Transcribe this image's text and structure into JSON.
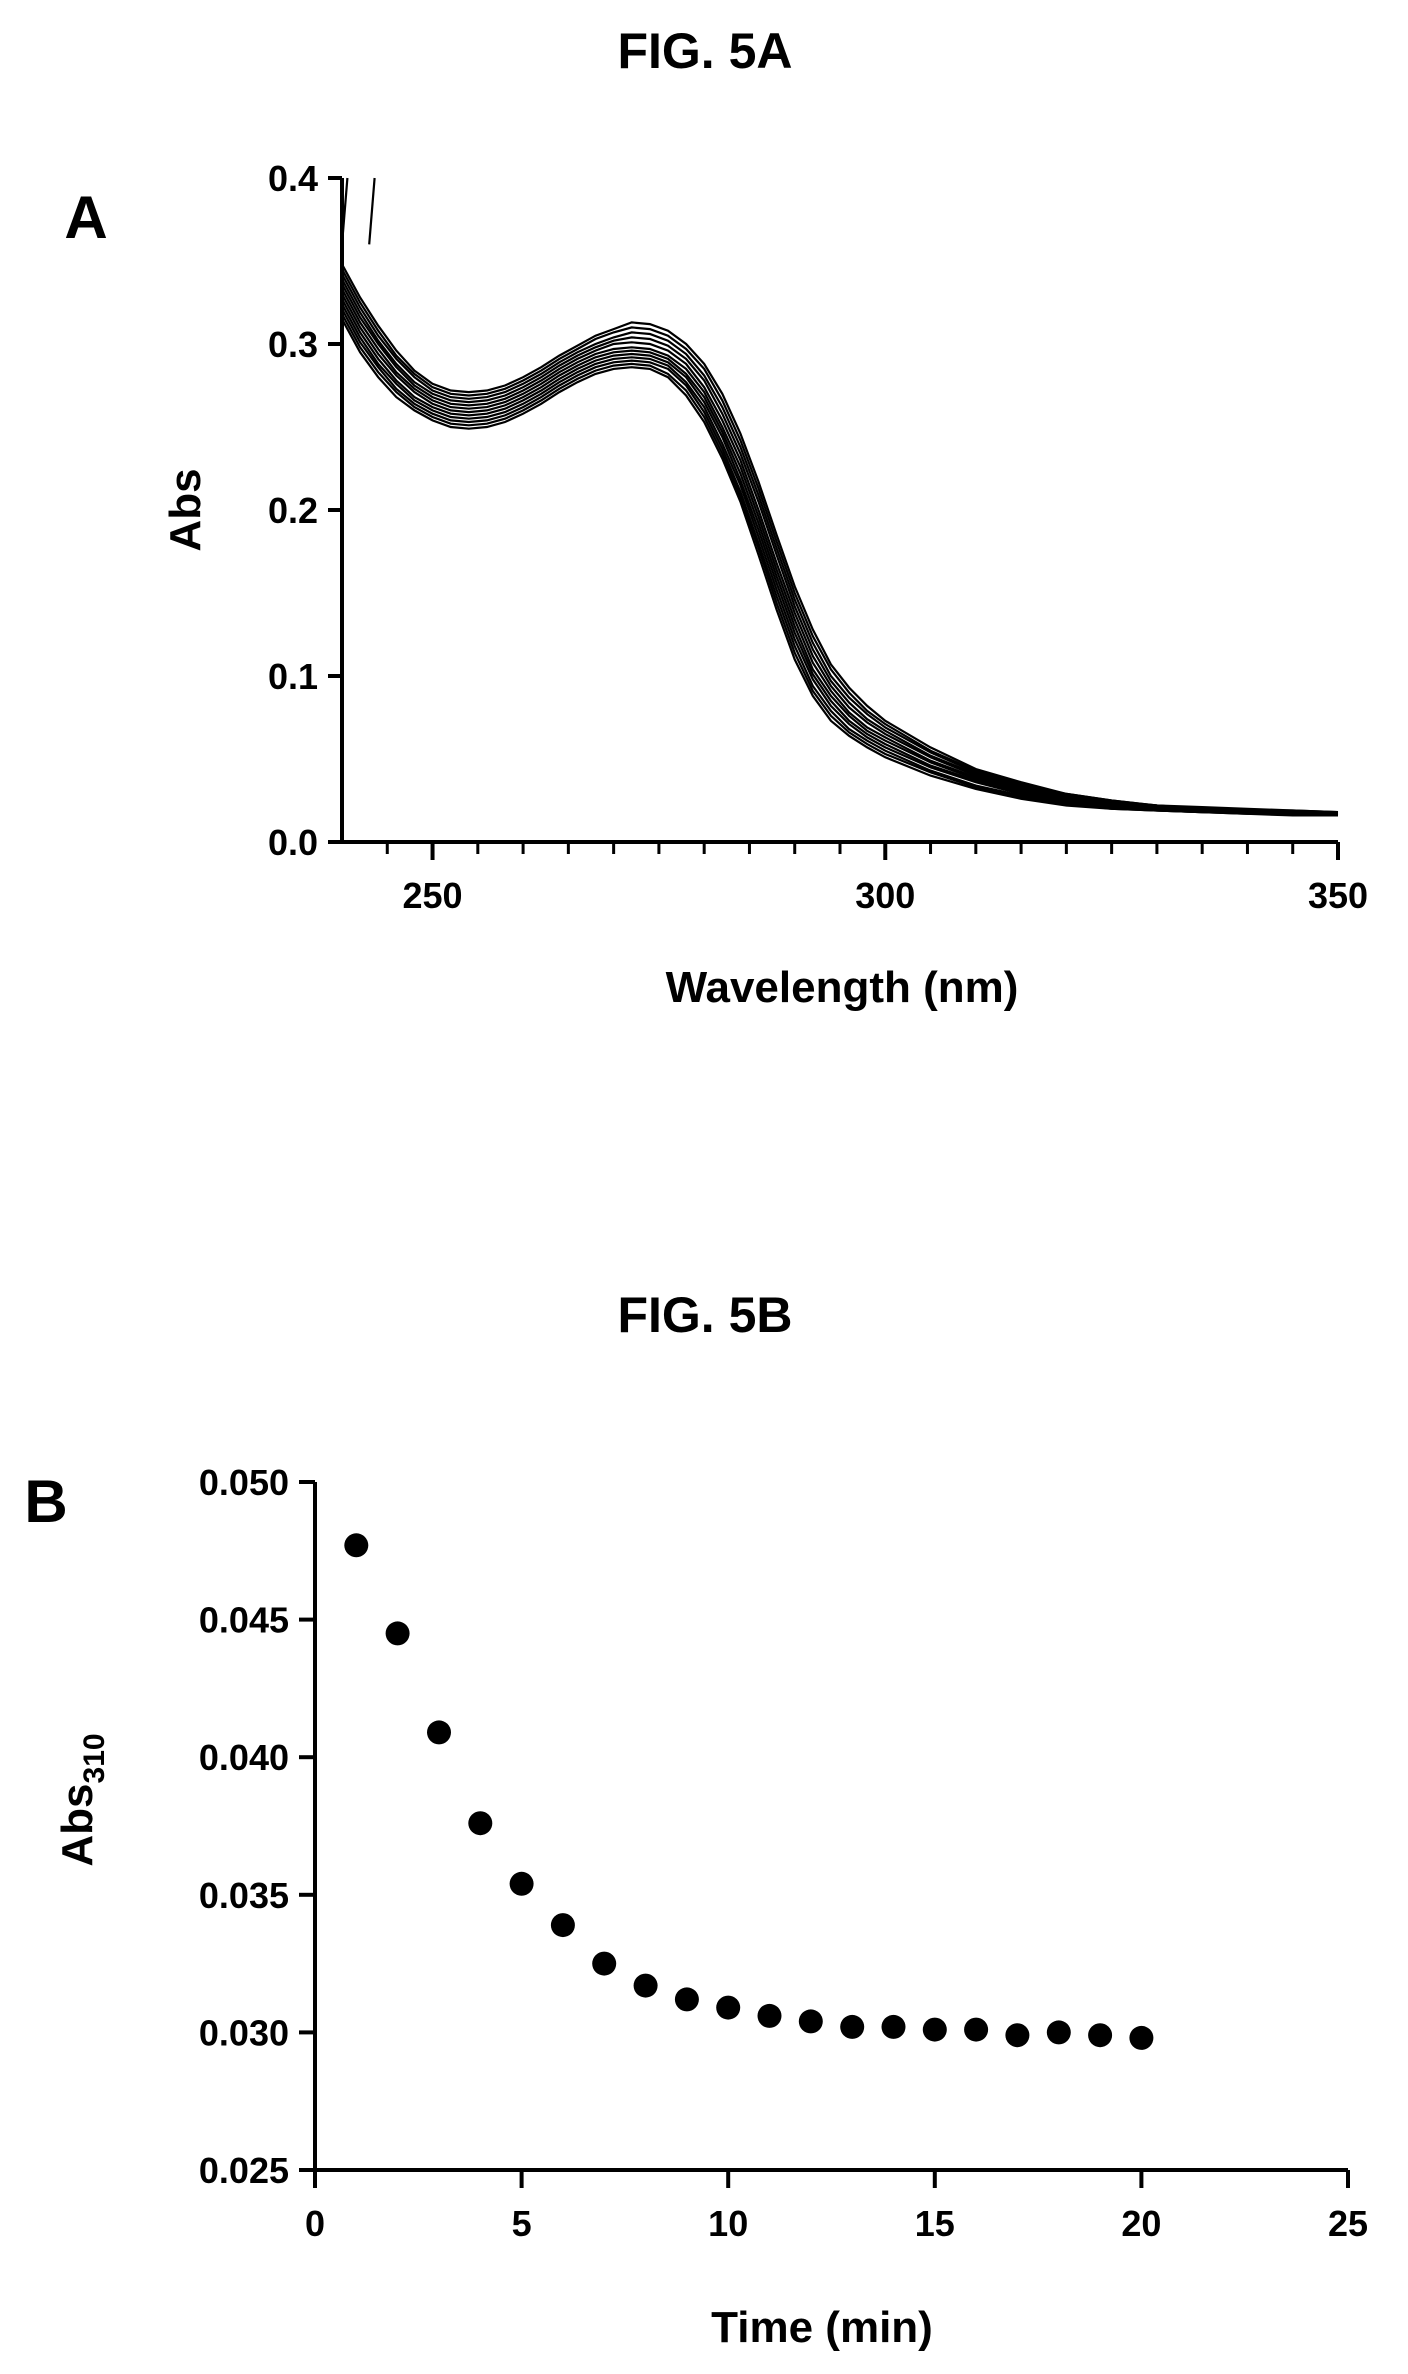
{
  "figure_a": {
    "title": "FIG. 5A",
    "panel_label": "A"
  },
  "figure_b": {
    "title": "FIG. 5B",
    "panel_label": "B"
  },
  "chart_data": [
    {
      "type": "line",
      "panel": "A",
      "xlabel": "Wavelength (nm)",
      "ylabel": "Abs",
      "xlim": [
        240,
        350
      ],
      "ylim": [
        0.0,
        0.4
      ],
      "xticks": [
        250,
        300,
        350
      ],
      "xtick_labels": [
        "250",
        "300",
        "350"
      ],
      "yticks": [
        0.0,
        0.1,
        0.2,
        0.3,
        0.4
      ],
      "ytick_labels": [
        "0.0",
        "0.1",
        "0.2",
        "0.3",
        "0.4"
      ],
      "grid": false,
      "legend": "none",
      "x": [
        240,
        242,
        244,
        246,
        248,
        250,
        252,
        254,
        256,
        258,
        260,
        262,
        264,
        266,
        268,
        270,
        272,
        274,
        276,
        278,
        280,
        282,
        284,
        286,
        288,
        290,
        292,
        294,
        296,
        298,
        300,
        305,
        310,
        315,
        320,
        325,
        330,
        335,
        340,
        345,
        350
      ],
      "series": [
        {
          "values": [
            0.315,
            0.295,
            0.28,
            0.268,
            0.26,
            0.254,
            0.25,
            0.249,
            0.25,
            0.253,
            0.258,
            0.264,
            0.271,
            0.277,
            0.282,
            0.285,
            0.286,
            0.285,
            0.28,
            0.269,
            0.253,
            0.231,
            0.205,
            0.173,
            0.14,
            0.11,
            0.088,
            0.073,
            0.064,
            0.057,
            0.051,
            0.04,
            0.032,
            0.026,
            0.022,
            0.02,
            0.019,
            0.018,
            0.017,
            0.016,
            0.016
          ]
        },
        {
          "values": [
            0.318,
            0.298,
            0.283,
            0.271,
            0.262,
            0.256,
            0.252,
            0.251,
            0.252,
            0.255,
            0.26,
            0.266,
            0.273,
            0.279,
            0.284,
            0.287,
            0.288,
            0.287,
            0.282,
            0.272,
            0.256,
            0.234,
            0.208,
            0.177,
            0.144,
            0.114,
            0.091,
            0.076,
            0.066,
            0.059,
            0.053,
            0.042,
            0.033,
            0.027,
            0.023,
            0.02,
            0.019,
            0.018,
            0.017,
            0.017,
            0.016
          ]
        },
        {
          "values": [
            0.321,
            0.301,
            0.286,
            0.273,
            0.264,
            0.258,
            0.254,
            0.253,
            0.254,
            0.257,
            0.262,
            0.268,
            0.275,
            0.281,
            0.286,
            0.289,
            0.29,
            0.289,
            0.285,
            0.275,
            0.259,
            0.237,
            0.211,
            0.18,
            0.148,
            0.118,
            0.094,
            0.079,
            0.068,
            0.061,
            0.055,
            0.043,
            0.034,
            0.028,
            0.023,
            0.021,
            0.019,
            0.018,
            0.018,
            0.017,
            0.016
          ]
        },
        {
          "values": [
            0.324,
            0.304,
            0.288,
            0.276,
            0.266,
            0.26,
            0.256,
            0.255,
            0.256,
            0.259,
            0.264,
            0.27,
            0.277,
            0.283,
            0.288,
            0.291,
            0.292,
            0.291,
            0.287,
            0.277,
            0.262,
            0.24,
            0.215,
            0.184,
            0.152,
            0.122,
            0.098,
            0.082,
            0.071,
            0.063,
            0.057,
            0.045,
            0.036,
            0.029,
            0.024,
            0.021,
            0.02,
            0.019,
            0.018,
            0.017,
            0.017
          ]
        },
        {
          "values": [
            0.327,
            0.307,
            0.291,
            0.278,
            0.268,
            0.262,
            0.258,
            0.257,
            0.258,
            0.261,
            0.266,
            0.272,
            0.279,
            0.285,
            0.29,
            0.293,
            0.294,
            0.293,
            0.289,
            0.28,
            0.265,
            0.244,
            0.218,
            0.188,
            0.156,
            0.126,
            0.101,
            0.085,
            0.073,
            0.065,
            0.059,
            0.046,
            0.037,
            0.03,
            0.025,
            0.022,
            0.02,
            0.019,
            0.018,
            0.017,
            0.017
          ]
        },
        {
          "values": [
            0.33,
            0.31,
            0.294,
            0.281,
            0.271,
            0.264,
            0.26,
            0.259,
            0.26,
            0.263,
            0.268,
            0.274,
            0.281,
            0.287,
            0.292,
            0.295,
            0.296,
            0.295,
            0.291,
            0.282,
            0.268,
            0.247,
            0.222,
            0.192,
            0.16,
            0.13,
            0.104,
            0.088,
            0.076,
            0.067,
            0.061,
            0.048,
            0.038,
            0.031,
            0.025,
            0.022,
            0.02,
            0.019,
            0.018,
            0.018,
            0.017
          ]
        },
        {
          "values": [
            0.333,
            0.313,
            0.297,
            0.283,
            0.273,
            0.266,
            0.262,
            0.261,
            0.262,
            0.265,
            0.27,
            0.276,
            0.283,
            0.289,
            0.294,
            0.297,
            0.298,
            0.297,
            0.293,
            0.285,
            0.271,
            0.25,
            0.226,
            0.196,
            0.164,
            0.134,
            0.108,
            0.091,
            0.078,
            0.069,
            0.063,
            0.049,
            0.039,
            0.032,
            0.026,
            0.023,
            0.021,
            0.019,
            0.018,
            0.018,
            0.017
          ]
        },
        {
          "values": [
            0.336,
            0.316,
            0.3,
            0.286,
            0.275,
            0.268,
            0.264,
            0.263,
            0.264,
            0.267,
            0.272,
            0.278,
            0.285,
            0.291,
            0.296,
            0.3,
            0.301,
            0.3,
            0.296,
            0.288,
            0.274,
            0.254,
            0.23,
            0.2,
            0.168,
            0.138,
            0.112,
            0.094,
            0.081,
            0.072,
            0.065,
            0.051,
            0.04,
            0.033,
            0.027,
            0.023,
            0.021,
            0.02,
            0.019,
            0.018,
            0.017
          ]
        },
        {
          "values": [
            0.339,
            0.319,
            0.302,
            0.288,
            0.277,
            0.27,
            0.266,
            0.265,
            0.266,
            0.269,
            0.274,
            0.28,
            0.287,
            0.293,
            0.298,
            0.302,
            0.304,
            0.303,
            0.299,
            0.291,
            0.278,
            0.258,
            0.234,
            0.205,
            0.173,
            0.142,
            0.116,
            0.097,
            0.084,
            0.074,
            0.067,
            0.052,
            0.041,
            0.033,
            0.027,
            0.024,
            0.021,
            0.02,
            0.019,
            0.018,
            0.018
          ]
        },
        {
          "values": [
            0.342,
            0.322,
            0.305,
            0.291,
            0.28,
            0.272,
            0.268,
            0.267,
            0.268,
            0.271,
            0.276,
            0.282,
            0.289,
            0.295,
            0.3,
            0.304,
            0.307,
            0.306,
            0.302,
            0.294,
            0.281,
            0.262,
            0.238,
            0.209,
            0.177,
            0.146,
            0.12,
            0.1,
            0.087,
            0.077,
            0.069,
            0.054,
            0.042,
            0.034,
            0.028,
            0.024,
            0.022,
            0.02,
            0.019,
            0.018,
            0.018
          ]
        },
        {
          "values": [
            0.345,
            0.325,
            0.308,
            0.293,
            0.282,
            0.274,
            0.27,
            0.269,
            0.27,
            0.273,
            0.278,
            0.284,
            0.291,
            0.297,
            0.303,
            0.307,
            0.31,
            0.309,
            0.305,
            0.297,
            0.285,
            0.266,
            0.242,
            0.213,
            0.181,
            0.15,
            0.124,
            0.104,
            0.09,
            0.079,
            0.071,
            0.055,
            0.043,
            0.035,
            0.029,
            0.025,
            0.022,
            0.02,
            0.019,
            0.019,
            0.018
          ]
        },
        {
          "values": [
            0.348,
            0.328,
            0.311,
            0.296,
            0.284,
            0.276,
            0.272,
            0.271,
            0.272,
            0.275,
            0.28,
            0.286,
            0.293,
            0.299,
            0.305,
            0.309,
            0.313,
            0.312,
            0.308,
            0.3,
            0.288,
            0.27,
            0.246,
            0.217,
            0.185,
            0.154,
            0.128,
            0.107,
            0.093,
            0.082,
            0.073,
            0.057,
            0.044,
            0.036,
            0.029,
            0.025,
            0.022,
            0.021,
            0.02,
            0.019,
            0.018
          ]
        }
      ]
    },
    {
      "type": "scatter",
      "panel": "B",
      "xlabel": "Time (min)",
      "ylabel_main": "Abs",
      "ylabel_sub": "310",
      "xlim": [
        0,
        25
      ],
      "ylim": [
        0.025,
        0.05
      ],
      "xticks": [
        0,
        5,
        10,
        15,
        20,
        25
      ],
      "xtick_labels": [
        "0",
        "5",
        "10",
        "15",
        "20",
        "25"
      ],
      "yticks": [
        0.025,
        0.03,
        0.035,
        0.04,
        0.045,
        0.05
      ],
      "ytick_labels": [
        "0.025",
        "0.030",
        "0.035",
        "0.040",
        "0.045",
        "0.050"
      ],
      "grid": false,
      "legend": "none",
      "x": [
        1,
        2,
        3,
        4,
        5,
        6,
        7,
        8,
        9,
        10,
        11,
        12,
        13,
        14,
        15,
        16,
        17,
        18,
        19,
        20
      ],
      "y": [
        0.0477,
        0.0445,
        0.0409,
        0.0376,
        0.0354,
        0.0339,
        0.0325,
        0.0317,
        0.0312,
        0.0309,
        0.0306,
        0.0304,
        0.0302,
        0.0302,
        0.0301,
        0.0301,
        0.0299,
        0.03,
        0.0299,
        0.0298
      ]
    }
  ]
}
